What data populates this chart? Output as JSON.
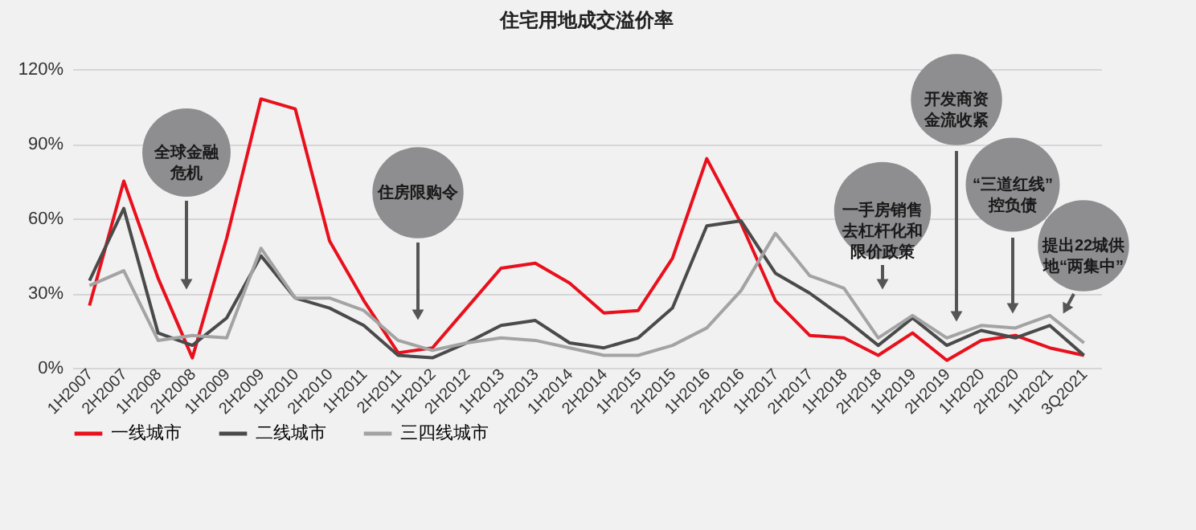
{
  "chart_data": {
    "type": "line",
    "title": "住宅用地成交溢价率",
    "categories": [
      "1H2007",
      "2H2007",
      "1H2008",
      "2H2008",
      "1H2009",
      "2H2009",
      "1H2010",
      "2H2010",
      "1H2011",
      "2H2011",
      "1H2012",
      "2H2012",
      "1H2013",
      "2H2013",
      "1H2014",
      "2H2014",
      "1H2015",
      "2H2015",
      "1H2016",
      "2H2016",
      "1H2017",
      "2H2017",
      "1H2018",
      "2H2018",
      "1H2019",
      "2H2019",
      "1H2020",
      "2H2020",
      "1H2021",
      "3Q2021"
    ],
    "series": [
      {
        "name": "一线城市",
        "color": "#e8101c",
        "values": [
          25,
          75,
          36,
          4,
          52,
          108,
          104,
          51,
          27,
          6,
          8,
          24,
          40,
          42,
          34,
          22,
          23,
          44,
          84,
          58,
          27,
          13,
          12,
          5,
          14,
          3,
          11,
          13,
          8,
          5
        ]
      },
      {
        "name": "二线城市",
        "color": "#4a4a4a",
        "values": [
          35,
          64,
          14,
          9,
          20,
          45,
          28,
          24,
          17,
          5,
          4,
          10,
          17,
          19,
          10,
          8,
          12,
          24,
          57,
          59,
          38,
          30,
          20,
          9,
          20,
          9,
          15,
          12,
          17,
          5
        ]
      },
      {
        "name": "三四线城市",
        "color": "#a3a3a3",
        "values": [
          33,
          39,
          11,
          13,
          12,
          48,
          28,
          28,
          23,
          11,
          7,
          10,
          12,
          11,
          8,
          5,
          5,
          9,
          16,
          31,
          54,
          37,
          32,
          12,
          21,
          12,
          17,
          16,
          21,
          10
        ]
      }
    ],
    "ylim": [
      0,
      120
    ],
    "yticks": [
      {
        "value": 0,
        "label": "0%"
      },
      {
        "value": 30,
        "label": "30%"
      },
      {
        "value": 60,
        "label": "60%"
      },
      {
        "value": 90,
        "label": "90%"
      },
      {
        "value": 120,
        "label": "120%"
      }
    ],
    "grid": "y",
    "legend": "bottom",
    "marker": "none",
    "line_style": "solid",
    "annotations": [
      "全球金融危机",
      "住房限购令",
      "一手房销售去杠杆化和限价政策",
      "开发商资金流收紧",
      "“三道红线”控负债",
      "提出22城供地“两集中”"
    ]
  }
}
